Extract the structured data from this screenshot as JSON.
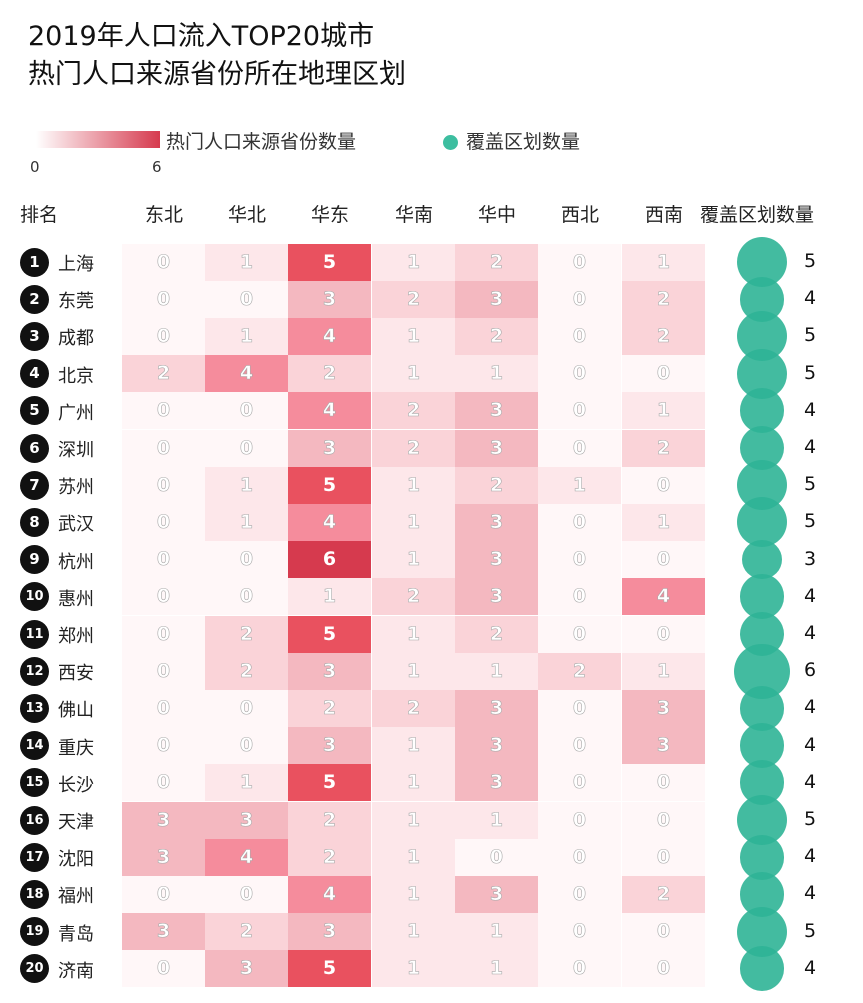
{
  "chart_data": {
    "type": "heatmap",
    "title": [
      "2019年人口流入TOP20城市",
      "热门人口来源省份所在地理区划"
    ],
    "legend": {
      "heat_label": "热门人口来源省份数量",
      "heat_min": "0",
      "heat_max": "6",
      "circle_label": "覆盖区划数量"
    },
    "rank_header": "排名",
    "columns": [
      "东北",
      "华北",
      "华东",
      "华南",
      "华中",
      "西北",
      "西南"
    ],
    "count_header": "覆盖区划数量",
    "colors": {
      "max": "#d63a4e",
      "min": "#ffffff",
      "circle": "#2fb496"
    },
    "rows": [
      {
        "rank": "1",
        "city": "上海",
        "values": [
          0,
          1,
          5,
          1,
          2,
          0,
          1
        ],
        "coverage": 5
      },
      {
        "rank": "2",
        "city": "东莞",
        "values": [
          0,
          0,
          3,
          2,
          3,
          0,
          2
        ],
        "coverage": 4
      },
      {
        "rank": "3",
        "city": "成都",
        "values": [
          0,
          1,
          4,
          1,
          2,
          0,
          2
        ],
        "coverage": 5
      },
      {
        "rank": "4",
        "city": "北京",
        "values": [
          2,
          4,
          2,
          1,
          1,
          0,
          0
        ],
        "coverage": 5
      },
      {
        "rank": "5",
        "city": "广州",
        "values": [
          0,
          0,
          4,
          2,
          3,
          0,
          1
        ],
        "coverage": 4
      },
      {
        "rank": "6",
        "city": "深圳",
        "values": [
          0,
          0,
          3,
          2,
          3,
          0,
          2
        ],
        "coverage": 4
      },
      {
        "rank": "7",
        "city": "苏州",
        "values": [
          0,
          1,
          5,
          1,
          2,
          1,
          0
        ],
        "coverage": 5
      },
      {
        "rank": "8",
        "city": "武汉",
        "values": [
          0,
          1,
          4,
          1,
          3,
          0,
          1
        ],
        "coverage": 5
      },
      {
        "rank": "9",
        "city": "杭州",
        "values": [
          0,
          0,
          6,
          1,
          3,
          0,
          0
        ],
        "coverage": 3
      },
      {
        "rank": "10",
        "city": "惠州",
        "values": [
          0,
          0,
          1,
          2,
          3,
          0,
          4
        ],
        "coverage": 4
      },
      {
        "rank": "11",
        "city": "郑州",
        "values": [
          0,
          2,
          5,
          1,
          2,
          0,
          0
        ],
        "coverage": 4
      },
      {
        "rank": "12",
        "city": "西安",
        "values": [
          0,
          2,
          3,
          1,
          1,
          2,
          1
        ],
        "coverage": 6
      },
      {
        "rank": "13",
        "city": "佛山",
        "values": [
          0,
          0,
          2,
          2,
          3,
          0,
          3
        ],
        "coverage": 4
      },
      {
        "rank": "14",
        "city": "重庆",
        "values": [
          0,
          0,
          3,
          1,
          3,
          0,
          3
        ],
        "coverage": 4
      },
      {
        "rank": "15",
        "city": "长沙",
        "values": [
          0,
          1,
          5,
          1,
          3,
          0,
          0
        ],
        "coverage": 4
      },
      {
        "rank": "16",
        "city": "天津",
        "values": [
          3,
          3,
          2,
          1,
          1,
          0,
          0
        ],
        "coverage": 5
      },
      {
        "rank": "17",
        "city": "沈阳",
        "values": [
          3,
          4,
          2,
          1,
          0,
          0,
          0
        ],
        "coverage": 4
      },
      {
        "rank": "18",
        "city": "福州",
        "values": [
          0,
          0,
          4,
          1,
          3,
          0,
          2
        ],
        "coverage": 4
      },
      {
        "rank": "19",
        "city": "青岛",
        "values": [
          3,
          2,
          3,
          1,
          1,
          0,
          0
        ],
        "coverage": 5
      },
      {
        "rank": "20",
        "city": "济南",
        "values": [
          0,
          3,
          5,
          1,
          1,
          0,
          0
        ],
        "coverage": 4
      }
    ]
  }
}
